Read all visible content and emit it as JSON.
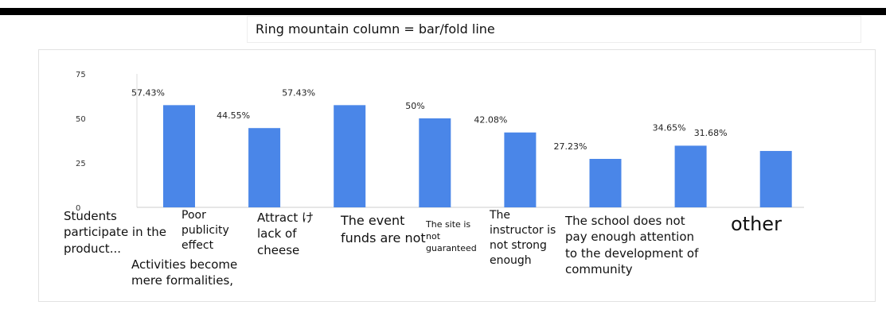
{
  "chart_data": {
    "type": "bar",
    "title": "Ring mountain column = bar/fold line",
    "categories": [
      "Students participate in the product...",
      "Poor publicity effect",
      "Attract け lack of cheese",
      "The event funds are not",
      "The site is not guaranteed",
      "The instructor is not strong enough",
      "The school does not pay enough attention to the development of community",
      "other"
    ],
    "values": [
      57.43,
      44.55,
      57.43,
      50,
      42.08,
      27.23,
      34.65,
      31.68
    ],
    "value_labels": [
      "57.43%",
      "44.55%",
      "57.43%",
      "50%",
      "42.08%",
      "27.23%",
      "34.65%",
      "31.68%"
    ],
    "annotations": [
      "Activities become mere formalities,"
    ],
    "color": "#4a86e8",
    "ylim": [
      0,
      75
    ],
    "yticks": [
      0,
      25,
      50,
      75
    ],
    "grid": false
  }
}
